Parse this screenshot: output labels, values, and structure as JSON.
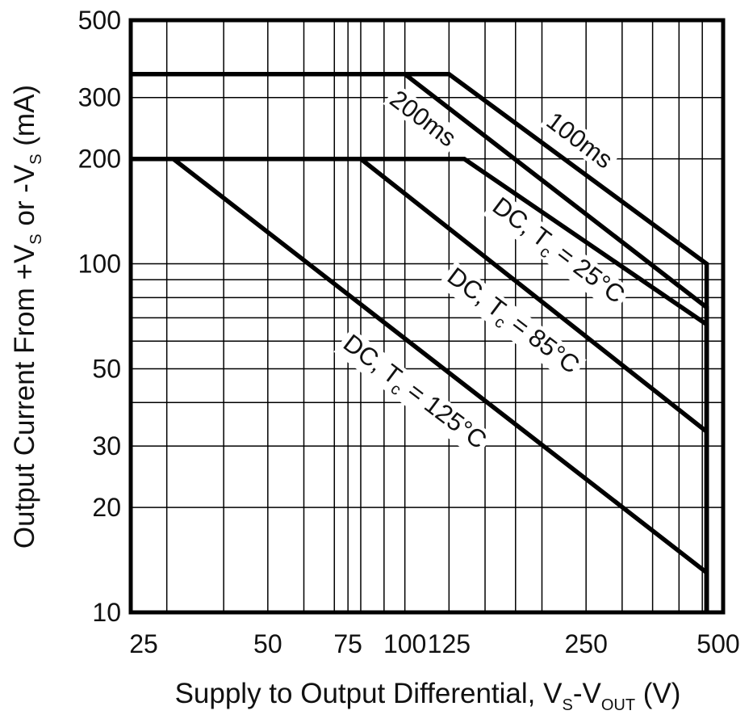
{
  "chart_data": {
    "type": "line",
    "xscale": "log",
    "yscale": "log",
    "xlim": [
      25,
      500
    ],
    "ylim": [
      10,
      500
    ],
    "x_ticks": [
      "25",
      "50",
      "75",
      "100",
      "125",
      "250",
      "500"
    ],
    "y_ticks": [
      "10",
      "20",
      "30",
      "50",
      "100",
      "200",
      "300",
      "500"
    ],
    "x_grid": [
      30,
      40,
      50,
      60,
      70,
      75,
      80,
      90,
      100,
      125,
      150,
      175,
      200,
      250,
      300,
      350,
      400,
      450
    ],
    "y_grid": [
      20,
      30,
      40,
      50,
      60,
      70,
      80,
      90,
      100,
      200,
      300
    ],
    "xlabel": {
      "main": "Supply to Output Differential, V",
      "sub1": "S",
      "mid": "-V",
      "sub2": "OUT",
      "tail": " (V)"
    },
    "ylabel": {
      "main": "Output Current From +V",
      "sub1": "S",
      "mid": " or -V",
      "sub2": "S",
      "tail": " (mA)"
    },
    "series": [
      {
        "name": "100ms",
        "label_main": "100ms",
        "points": [
          [
            25,
            350
          ],
          [
            125,
            350
          ],
          [
            460,
            100
          ],
          [
            460,
            10
          ]
        ]
      },
      {
        "name": "200ms",
        "label_main": "200ms",
        "points": [
          [
            25,
            350
          ],
          [
            100,
            350
          ],
          [
            460,
            75
          ],
          [
            460,
            10
          ]
        ]
      },
      {
        "name": "DC, Tc = 25°C",
        "label_main": "DC, T",
        "label_sub": "c",
        "label_tail": " = 25°C",
        "points": [
          [
            25,
            200
          ],
          [
            135,
            200
          ],
          [
            460,
            67
          ],
          [
            460,
            10
          ]
        ]
      },
      {
        "name": "DC, Tc = 85°C",
        "label_main": "DC, T",
        "label_sub": "c",
        "label_tail": " = 85°C",
        "points": [
          [
            80,
            200
          ],
          [
            460,
            33
          ],
          [
            460,
            10
          ]
        ]
      },
      {
        "name": "DC, Tc = 125°C",
        "label_main": "DC, T",
        "label_sub": "c",
        "label_tail": " = 125°C",
        "points": [
          [
            31,
            200
          ],
          [
            460,
            13
          ],
          [
            460,
            10
          ]
        ]
      }
    ]
  }
}
